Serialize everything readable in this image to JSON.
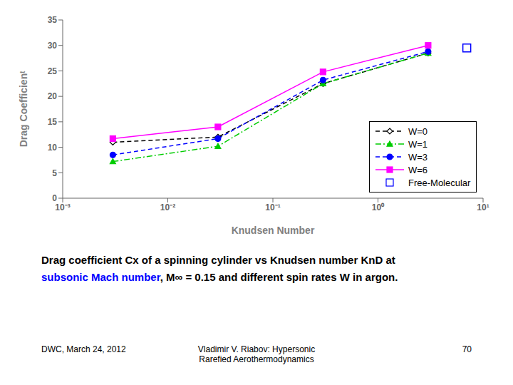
{
  "chart_data": {
    "type": "line",
    "xlabel": "Knudsen Number",
    "ylabel": "Drag Coefficienᵗ",
    "log": "x",
    "xlim": [
      0.001,
      10
    ],
    "xticks": [
      {
        "value": 0.001,
        "label": "10⁻³"
      },
      {
        "value": 0.01,
        "label": "10⁻²"
      },
      {
        "value": 0.1,
        "label": "10⁻¹"
      },
      {
        "value": 1,
        "label": "10⁰"
      },
      {
        "value": 10,
        "label": "10¹"
      }
    ],
    "ylim": [
      0,
      35
    ],
    "yticks": [
      0,
      5,
      10,
      15,
      20,
      25,
      30,
      35
    ],
    "grid": false,
    "legend": "lower right",
    "series": [
      {
        "name": "W=0",
        "type": "line",
        "color": "black",
        "marker": "diamond",
        "line_style": "dashed",
        "x": [
          0.003,
          0.03,
          0.3,
          3
        ],
        "values": [
          11.0,
          12.0,
          22.5,
          28.5
        ]
      },
      {
        "name": "W=1",
        "type": "line",
        "color": "#00cc00",
        "marker": "triangle",
        "line_style": "dash-dot",
        "x": [
          0.003,
          0.03,
          0.3,
          3
        ],
        "values": [
          7.2,
          10.2,
          22.5,
          28.5
        ]
      },
      {
        "name": "W=3",
        "type": "line",
        "color": "blue",
        "marker": "circle",
        "line_style": "dashed",
        "x": [
          0.003,
          0.03,
          0.3,
          3
        ],
        "values": [
          8.5,
          11.7,
          23.2,
          28.8
        ]
      },
      {
        "name": "W=6",
        "type": "line",
        "color": "magenta",
        "marker": "square",
        "line_style": "solid",
        "x": [
          0.003,
          0.03,
          0.3,
          3
        ],
        "values": [
          11.7,
          14.0,
          24.8,
          30.0
        ]
      },
      {
        "name": "Free-Molecular",
        "type": "scatter",
        "color": "blue",
        "marker": "square",
        "x": [
          7.0
        ],
        "values": [
          29.5
        ]
      }
    ],
    "annotations": [
      {
        "text": "Drag coefficient Cx of a spinning cylinder vs Knudsen number KnD at",
        "color": "black"
      },
      {
        "text": "subsonic Mach number",
        "color": "blue"
      },
      {
        "text": ", M∞ = 0.15 and different spin rates W in argon.",
        "color": "black"
      },
      {
        "text": "DWC, March 24, 2012",
        "color": "black"
      },
      {
        "text": "Vladimir V. Riabov: Hypersonic\n Rarefied Aerothermodynamics",
        "color": "black"
      },
      {
        "text": "70",
        "color": "black"
      }
    ]
  }
}
